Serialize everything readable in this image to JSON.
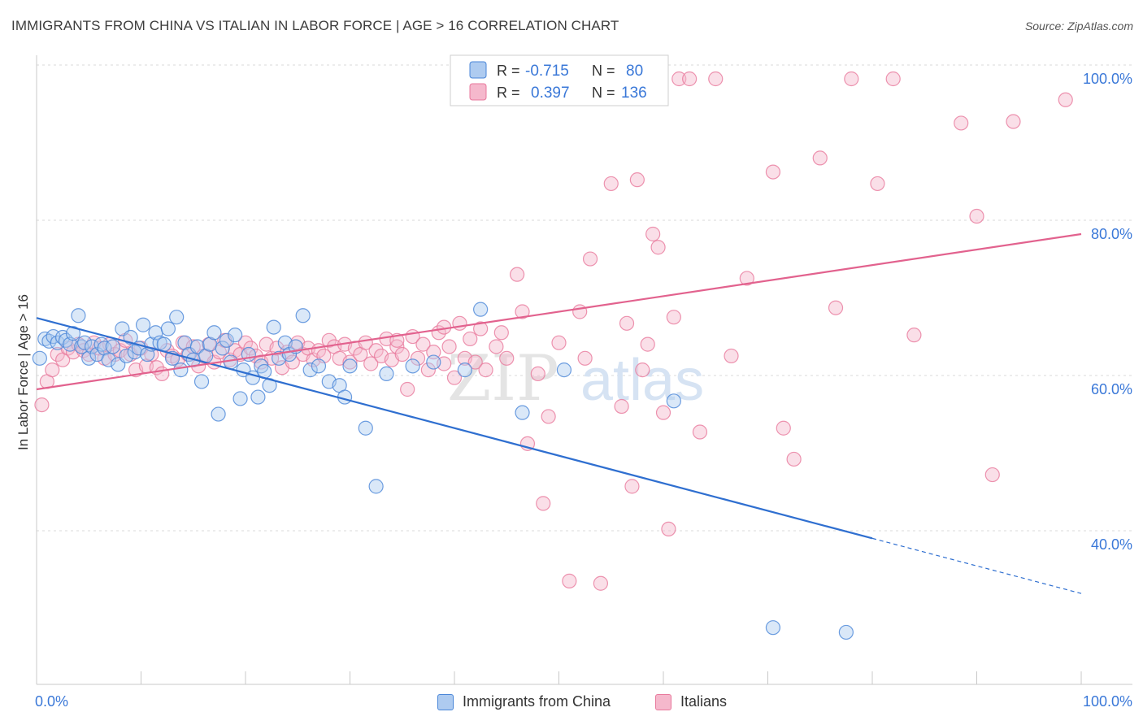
{
  "header": {
    "title": "IMMIGRANTS FROM CHINA VS ITALIAN IN LABOR FORCE | AGE > 16 CORRELATION CHART",
    "source": "Source: ZipAtlas.com"
  },
  "watermark": {
    "zip": "ZIP",
    "atlas": "atlas"
  },
  "colors": {
    "blue": "#4a86d8",
    "blue_fill": "#aecbf0",
    "blue_line": "#2f6fd0",
    "pink": "#e8799c",
    "pink_fill": "#f5b8cc",
    "pink_line": "#e2628e",
    "tick_label": "#3a78d8",
    "grid": "#d8d8d8",
    "axis": "#c8c8c8"
  },
  "legend_top": {
    "rows": [
      {
        "r_label": "R =",
        "r_value": "-0.715",
        "n_label": "N =",
        "n_value": "80"
      },
      {
        "r_label": "R =",
        "r_value": "0.397",
        "n_label": "N =",
        "n_value": "136"
      }
    ]
  },
  "legend_bottom": {
    "items": [
      {
        "label": "Immigrants from China"
      },
      {
        "label": "Italians"
      }
    ]
  },
  "chart_data": {
    "type": "scatter",
    "xlabel": "",
    "ylabel": "In Labor Force | Age > 16",
    "xlim": [
      0,
      100
    ],
    "ylim": [
      20,
      102
    ],
    "x_tick_labels": [
      {
        "value": 0,
        "label": "0.0%"
      },
      {
        "value": 100,
        "label": "100.0%"
      }
    ],
    "y_tick_labels": [
      {
        "value": 100,
        "label": "100.0%"
      },
      {
        "value": 80,
        "label": "80.0%"
      },
      {
        "value": 60,
        "label": "60.0%"
      },
      {
        "value": 40,
        "label": "40.0%"
      }
    ],
    "x_minor_ticks": [
      0,
      10,
      20,
      30,
      40,
      50,
      60,
      70,
      80,
      90,
      100
    ],
    "grid": true,
    "series": [
      {
        "name": "Immigrants from China",
        "color": "#4a86d8",
        "r": -0.715,
        "n": 80,
        "trend": {
          "x0": 0,
          "y0": 69.2,
          "x1": 80,
          "y1": 40.8,
          "dash_to_x": 100,
          "dash_to_y": 33.7
        },
        "points": [
          [
            0.3,
            64.0
          ],
          [
            0.8,
            66.5
          ],
          [
            1.2,
            66.2
          ],
          [
            1.6,
            66.8
          ],
          [
            2.0,
            66.0
          ],
          [
            2.5,
            66.7
          ],
          [
            2.8,
            66.3
          ],
          [
            3.2,
            65.8
          ],
          [
            3.5,
            67.2
          ],
          [
            4.0,
            69.5
          ],
          [
            4.3,
            65.5
          ],
          [
            4.6,
            66.0
          ],
          [
            5.0,
            64.0
          ],
          [
            5.3,
            65.5
          ],
          [
            5.8,
            64.5
          ],
          [
            6.2,
            65.8
          ],
          [
            6.5,
            65.3
          ],
          [
            6.9,
            63.8
          ],
          [
            7.3,
            65.5
          ],
          [
            7.8,
            63.2
          ],
          [
            8.2,
            67.8
          ],
          [
            8.6,
            64.3
          ],
          [
            9.0,
            66.7
          ],
          [
            9.4,
            64.8
          ],
          [
            9.8,
            65.3
          ],
          [
            10.2,
            68.3
          ],
          [
            10.6,
            64.5
          ],
          [
            11.0,
            65.8
          ],
          [
            11.4,
            67.3
          ],
          [
            11.8,
            66.0
          ],
          [
            12.2,
            65.8
          ],
          [
            12.6,
            67.8
          ],
          [
            13.0,
            64.0
          ],
          [
            13.4,
            69.3
          ],
          [
            13.8,
            62.5
          ],
          [
            14.2,
            66.0
          ],
          [
            14.6,
            64.5
          ],
          [
            15.0,
            63.8
          ],
          [
            15.4,
            65.5
          ],
          [
            15.8,
            61.0
          ],
          [
            16.2,
            64.3
          ],
          [
            16.6,
            65.8
          ],
          [
            17.0,
            67.3
          ],
          [
            17.4,
            56.8
          ],
          [
            17.8,
            65.3
          ],
          [
            18.2,
            66.3
          ],
          [
            18.6,
            63.5
          ],
          [
            19.0,
            67.0
          ],
          [
            19.5,
            58.8
          ],
          [
            19.8,
            62.5
          ],
          [
            20.3,
            64.5
          ],
          [
            20.7,
            61.5
          ],
          [
            21.2,
            59.0
          ],
          [
            21.5,
            63.0
          ],
          [
            21.8,
            62.3
          ],
          [
            22.3,
            60.5
          ],
          [
            22.7,
            68.0
          ],
          [
            23.2,
            64.0
          ],
          [
            23.8,
            66.0
          ],
          [
            24.2,
            64.5
          ],
          [
            24.8,
            65.5
          ],
          [
            25.5,
            69.5
          ],
          [
            26.2,
            62.5
          ],
          [
            27.0,
            63.0
          ],
          [
            28.0,
            61.0
          ],
          [
            29.0,
            60.5
          ],
          [
            29.5,
            59.0
          ],
          [
            30.0,
            63.0
          ],
          [
            31.5,
            55.0
          ],
          [
            32.5,
            47.5
          ],
          [
            33.5,
            62.0
          ],
          [
            36.0,
            63.0
          ],
          [
            38.0,
            63.5
          ],
          [
            41.0,
            62.5
          ],
          [
            42.5,
            70.3
          ],
          [
            46.5,
            57.0
          ],
          [
            50.5,
            62.5
          ],
          [
            61.0,
            58.5
          ],
          [
            70.5,
            29.3
          ],
          [
            77.5,
            28.7
          ]
        ]
      },
      {
        "name": "Italians",
        "color": "#e8799c",
        "r": 0.397,
        "n": 136,
        "trend": {
          "x0": 0,
          "y0": 60.0,
          "x1": 100,
          "y1": 80.0
        },
        "points": [
          [
            0.5,
            58.0
          ],
          [
            1.0,
            61.0
          ],
          [
            1.5,
            62.5
          ],
          [
            2.0,
            64.5
          ],
          [
            2.5,
            63.8
          ],
          [
            3.0,
            65.3
          ],
          [
            3.5,
            64.8
          ],
          [
            4.0,
            65.8
          ],
          [
            4.5,
            65.0
          ],
          [
            5.0,
            64.5
          ],
          [
            5.5,
            66.0
          ],
          [
            6.0,
            65.3
          ],
          [
            6.5,
            64.0
          ],
          [
            7.0,
            65.8
          ],
          [
            7.5,
            64.5
          ],
          [
            8.0,
            65.0
          ],
          [
            8.5,
            66.3
          ],
          [
            9.0,
            64.5
          ],
          [
            9.5,
            62.5
          ],
          [
            10.0,
            65.3
          ],
          [
            10.5,
            63.0
          ],
          [
            11.0,
            64.5
          ],
          [
            11.5,
            62.8
          ],
          [
            12.0,
            62.0
          ],
          [
            12.5,
            65.0
          ],
          [
            13.0,
            64.3
          ],
          [
            13.5,
            63.8
          ],
          [
            14.0,
            66.0
          ],
          [
            14.5,
            64.5
          ],
          [
            15.0,
            65.5
          ],
          [
            15.5,
            63.0
          ],
          [
            16.0,
            64.3
          ],
          [
            16.5,
            65.8
          ],
          [
            17.0,
            63.5
          ],
          [
            17.5,
            64.8
          ],
          [
            18.0,
            66.3
          ],
          [
            18.5,
            63.8
          ],
          [
            19.0,
            65.0
          ],
          [
            19.5,
            64.5
          ],
          [
            20.0,
            66.0
          ],
          [
            20.5,
            65.3
          ],
          [
            21.0,
            64.3
          ],
          [
            21.5,
            63.5
          ],
          [
            22.0,
            65.8
          ],
          [
            22.5,
            64.0
          ],
          [
            23.0,
            65.3
          ],
          [
            23.5,
            62.8
          ],
          [
            24.0,
            64.8
          ],
          [
            24.5,
            63.5
          ],
          [
            25.0,
            66.0
          ],
          [
            25.5,
            64.5
          ],
          [
            26.0,
            65.3
          ],
          [
            26.5,
            63.8
          ],
          [
            27.0,
            65.0
          ],
          [
            27.5,
            64.3
          ],
          [
            28.0,
            66.3
          ],
          [
            28.5,
            65.5
          ],
          [
            29.0,
            64.0
          ],
          [
            29.5,
            65.8
          ],
          [
            30.0,
            63.5
          ],
          [
            30.5,
            65.3
          ],
          [
            31.0,
            64.5
          ],
          [
            31.5,
            66.0
          ],
          [
            32.0,
            63.3
          ],
          [
            32.5,
            65.0
          ],
          [
            33.0,
            64.3
          ],
          [
            33.5,
            66.5
          ],
          [
            34.0,
            63.8
          ],
          [
            34.5,
            65.5
          ],
          [
            35.0,
            64.5
          ],
          [
            35.5,
            60.0
          ],
          [
            36.0,
            66.8
          ],
          [
            36.5,
            64.0
          ],
          [
            37.0,
            65.8
          ],
          [
            37.5,
            62.5
          ],
          [
            38.0,
            64.8
          ],
          [
            38.5,
            67.3
          ],
          [
            39.0,
            63.3
          ],
          [
            39.5,
            65.5
          ],
          [
            40.0,
            61.5
          ],
          [
            40.5,
            68.5
          ],
          [
            41.0,
            64.0
          ],
          [
            41.5,
            66.5
          ],
          [
            42.0,
            63.5
          ],
          [
            42.5,
            67.8
          ],
          [
            43.0,
            62.5
          ],
          [
            44.0,
            65.5
          ],
          [
            45.0,
            64.0
          ],
          [
            46.0,
            74.8
          ],
          [
            46.5,
            70.0
          ],
          [
            47.0,
            53.0
          ],
          [
            48.0,
            62.0
          ],
          [
            48.5,
            45.3
          ],
          [
            49.0,
            56.5
          ],
          [
            50.0,
            66.0
          ],
          [
            51.0,
            35.3
          ],
          [
            52.0,
            70.0
          ],
          [
            53.0,
            76.8
          ],
          [
            54.0,
            35.0
          ],
          [
            55.0,
            86.5
          ],
          [
            56.0,
            57.8
          ],
          [
            56.5,
            68.5
          ],
          [
            57.0,
            47.5
          ],
          [
            57.5,
            87.0
          ],
          [
            58.0,
            62.5
          ],
          [
            59.0,
            80.0
          ],
          [
            59.5,
            78.3
          ],
          [
            60.0,
            57.0
          ],
          [
            60.5,
            42.0
          ],
          [
            61.0,
            69.3
          ],
          [
            61.5,
            100.0
          ],
          [
            62.5,
            100.0
          ],
          [
            63.5,
            54.5
          ],
          [
            65.0,
            100.0
          ],
          [
            66.5,
            64.3
          ],
          [
            68.0,
            74.3
          ],
          [
            70.5,
            88.0
          ],
          [
            71.5,
            55.0
          ],
          [
            72.5,
            51.0
          ],
          [
            75.0,
            89.8
          ],
          [
            76.5,
            70.5
          ],
          [
            78.0,
            100.0
          ],
          [
            80.5,
            86.5
          ],
          [
            82.0,
            100.0
          ],
          [
            84.0,
            67.0
          ],
          [
            88.5,
            94.3
          ],
          [
            90.0,
            82.3
          ],
          [
            91.5,
            49.0
          ],
          [
            93.5,
            94.5
          ],
          [
            98.5,
            97.3
          ],
          [
            59.5,
            100.0
          ],
          [
            44.5,
            67.3
          ],
          [
            39.0,
            68.0
          ],
          [
            34.5,
            66.3
          ],
          [
            52.5,
            64.0
          ],
          [
            58.5,
            65.8
          ]
        ]
      }
    ]
  }
}
